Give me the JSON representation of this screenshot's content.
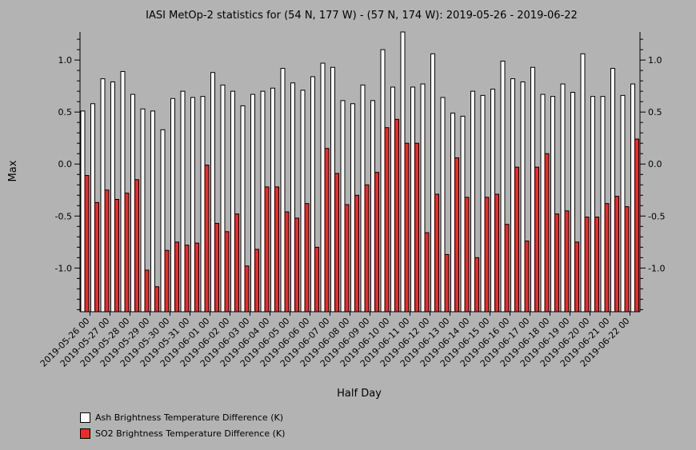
{
  "chart_data": {
    "type": "bar",
    "title": "IASI MetOp-2 statistics for (54 N, 177 W) - (57 N, 174 W): 2019-05-26 - 2019-06-22",
    "xlabel": "Half Day",
    "ylabel": "Max",
    "ylim": [
      -1.42,
      1.27
    ],
    "yticks": [
      -1.0,
      -0.5,
      0.0,
      0.5,
      1.0
    ],
    "ytick_labels": [
      "-1.0",
      "-0.5",
      "0.0",
      "0.5",
      "1.0"
    ],
    "grid": false,
    "legend_position": "bottom-left",
    "tick_labels": [
      "2019-05-26 00",
      "2019-05-27 00",
      "2019-05-28 00",
      "2019-05-29 00",
      "2019-05-30 00",
      "2019-05-31 00",
      "2019-06-01 00",
      "2019-06-02 00",
      "2019-06-03 00",
      "2019-06-04 00",
      "2019-06-05 00",
      "2019-06-06 00",
      "2019-06-07 00",
      "2019-06-08 00",
      "2019-06-09 00",
      "2019-06-10 00",
      "2019-06-11 00",
      "2019-06-12 00",
      "2019-06-13 00",
      "2019-06-14 00",
      "2019-06-15 00",
      "2019-06-16 00",
      "2019-06-17 00",
      "2019-06-18 00",
      "2019-06-19 00",
      "2019-06-20 00",
      "2019-06-21 00",
      "2019-06-22 00"
    ],
    "series": [
      {
        "name": "Ash Brightness Temperature Difference (K)",
        "color": "#ffffff",
        "values": [
          0.51,
          0.58,
          0.82,
          0.79,
          0.89,
          0.67,
          0.53,
          0.51,
          0.33,
          0.63,
          0.7,
          0.64,
          0.65,
          0.88,
          0.76,
          0.7,
          0.56,
          0.67,
          0.7,
          0.73,
          0.92,
          0.78,
          0.71,
          0.84,
          0.97,
          0.93,
          0.61,
          0.58,
          0.76,
          0.61,
          1.1,
          0.74,
          1.27,
          0.74,
          0.77,
          1.06,
          0.64,
          0.49,
          0.46,
          0.7,
          0.66,
          0.72,
          0.99,
          0.82,
          0.79,
          0.93,
          0.67,
          0.65,
          0.77,
          0.69,
          1.06,
          0.65,
          0.65,
          0.92,
          0.66,
          0.77
        ]
      },
      {
        "name": "SO2 Brightness Temperature Difference (K)",
        "color": "#ee2a2a",
        "values": [
          -0.11,
          -0.37,
          -0.25,
          -0.34,
          -0.28,
          -0.15,
          -1.02,
          -1.18,
          -0.83,
          -0.75,
          -0.78,
          -0.76,
          -0.01,
          -0.57,
          -0.65,
          -0.48,
          -0.98,
          -0.82,
          -0.22,
          -0.22,
          -0.46,
          -0.52,
          -0.38,
          -0.8,
          0.15,
          -0.09,
          -0.39,
          -0.3,
          -0.2,
          -0.08,
          0.35,
          0.43,
          0.2,
          0.2,
          -0.66,
          -0.29,
          -0.87,
          0.06,
          -0.32,
          -0.9,
          -0.32,
          -0.29,
          -0.58,
          -0.03,
          -0.74,
          -0.03,
          0.1,
          -0.48,
          -0.45,
          -0.75,
          -0.51,
          -0.51,
          -0.38,
          -0.31,
          -0.41,
          0.24
        ]
      }
    ]
  }
}
